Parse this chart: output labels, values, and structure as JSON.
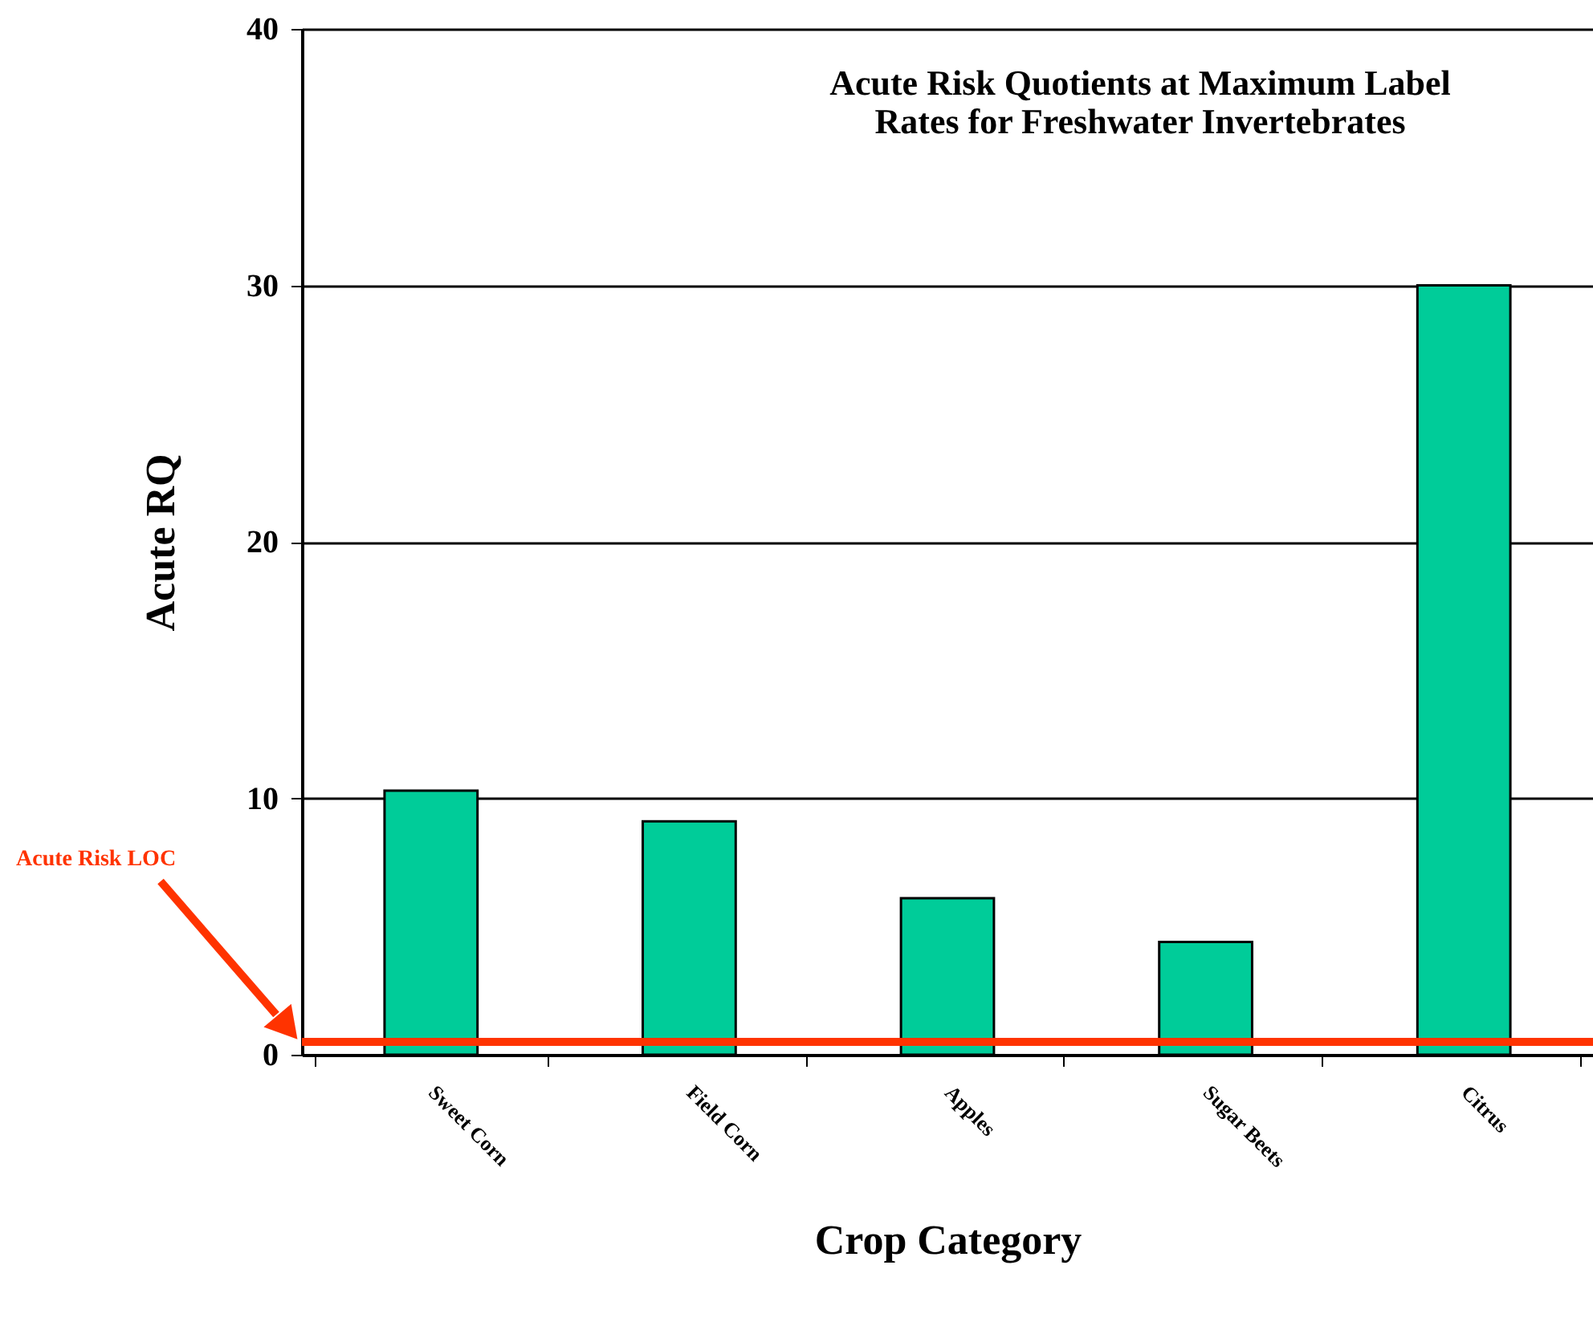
{
  "chart_data": {
    "type": "bar",
    "title": "Acute Risk Quotients at Maximum Label Rates for Freshwater Invertebrates",
    "xlabel": "Crop Category",
    "ylabel": "Acute RQ",
    "categories": [
      "Sweet Corn",
      "Field Corn",
      "Apples",
      "Sugar Beets",
      "Citrus"
    ],
    "values": [
      10.3,
      9.1,
      6.1,
      4.4,
      30.0
    ],
    "color": "#00cc99",
    "ylim": [
      0,
      40
    ],
    "yticks": [
      0,
      10,
      20,
      30,
      40
    ],
    "grid": "y",
    "ref_lines": [
      {
        "axis": "y",
        "value": 0.5,
        "label": "Acute Risk LOC",
        "color": "#ff3300"
      }
    ]
  }
}
